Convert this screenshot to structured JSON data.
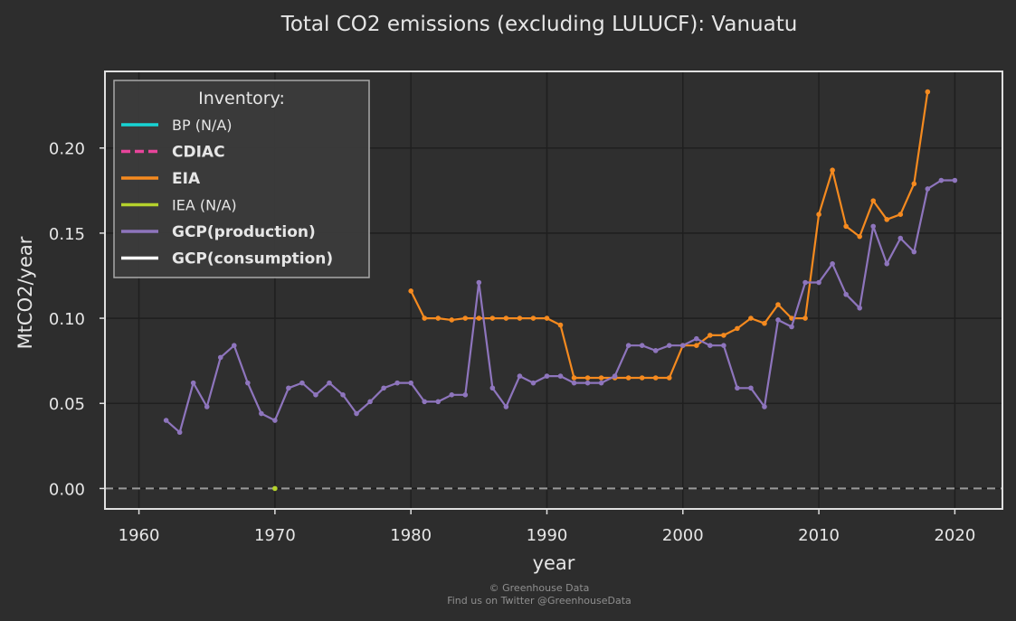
{
  "chart_data": {
    "type": "line",
    "title": "Total CO2 emissions (excluding LULUCF): Vanuatu",
    "xlabel": "year",
    "ylabel": "MtCO2/year",
    "xlim": [
      1957.5,
      2023.5
    ],
    "ylim": [
      -0.012,
      0.245
    ],
    "xticks": [
      1960,
      1970,
      1980,
      1990,
      2000,
      2010,
      2020
    ],
    "yticks": [
      0.0,
      0.05,
      0.1,
      0.15,
      0.2
    ],
    "ytick_labels": [
      "0.00",
      "0.05",
      "0.10",
      "0.15",
      "0.20"
    ],
    "grid": true,
    "zero_line": true,
    "legend": {
      "title": "Inventory:",
      "placement": "top-left",
      "entries": [
        {
          "label": "BP (N/A)",
          "color": "#17d4d4",
          "style": "solid",
          "bold": false
        },
        {
          "label": "CDIAC",
          "color": "#e8459b",
          "style": "dashed",
          "bold": true
        },
        {
          "label": "EIA",
          "color": "#f58a1f",
          "style": "solid",
          "bold": true
        },
        {
          "label": "IEA (N/A)",
          "color": "#b5d22c",
          "style": "solid",
          "bold": false
        },
        {
          "label": "GCP(production)",
          "color": "#8e75bd",
          "style": "solid",
          "bold": true
        },
        {
          "label": "GCP(consumption)",
          "color": "#ffffff",
          "style": "solid",
          "bold": true
        }
      ]
    },
    "series": [
      {
        "name": "EIA",
        "color": "#f58a1f",
        "points": [
          [
            1980,
            0.116
          ],
          [
            1981,
            0.1
          ],
          [
            1982,
            0.1
          ],
          [
            1983,
            0.099
          ],
          [
            1984,
            0.1
          ],
          [
            1985,
            0.1
          ],
          [
            1986,
            0.1
          ],
          [
            1987,
            0.1
          ],
          [
            1988,
            0.1
          ],
          [
            1989,
            0.1
          ],
          [
            1990,
            0.1
          ],
          [
            1991,
            0.096
          ],
          [
            1992,
            0.065
          ],
          [
            1993,
            0.065
          ],
          [
            1994,
            0.065
          ],
          [
            1995,
            0.065
          ],
          [
            1996,
            0.065
          ],
          [
            1997,
            0.065
          ],
          [
            1998,
            0.065
          ],
          [
            1999,
            0.065
          ],
          [
            2000,
            0.084
          ],
          [
            2001,
            0.084
          ],
          [
            2002,
            0.09
          ],
          [
            2003,
            0.09
          ],
          [
            2004,
            0.094
          ],
          [
            2005,
            0.1
          ],
          [
            2006,
            0.097
          ],
          [
            2007,
            0.108
          ],
          [
            2008,
            0.1
          ],
          [
            2009,
            0.1
          ],
          [
            2010,
            0.161
          ],
          [
            2011,
            0.187
          ],
          [
            2012,
            0.154
          ],
          [
            2013,
            0.148
          ],
          [
            2014,
            0.169
          ],
          [
            2015,
            0.158
          ],
          [
            2016,
            0.161
          ],
          [
            2017,
            0.179
          ],
          [
            2018,
            0.233
          ]
        ]
      },
      {
        "name": "GCP(production)",
        "color": "#8e75bd",
        "points": [
          [
            1962,
            0.04
          ],
          [
            1963,
            0.033
          ],
          [
            1964,
            0.062
          ],
          [
            1965,
            0.048
          ],
          [
            1966,
            0.077
          ],
          [
            1967,
            0.084
          ],
          [
            1968,
            0.062
          ],
          [
            1969,
            0.044
          ],
          [
            1970,
            0.04
          ],
          [
            1971,
            0.059
          ],
          [
            1972,
            0.062
          ],
          [
            1973,
            0.055
          ],
          [
            1974,
            0.062
          ],
          [
            1975,
            0.055
          ],
          [
            1976,
            0.044
          ],
          [
            1977,
            0.051
          ],
          [
            1978,
            0.059
          ],
          [
            1979,
            0.062
          ],
          [
            1980,
            0.062
          ],
          [
            1981,
            0.051
          ],
          [
            1982,
            0.051
          ],
          [
            1983,
            0.055
          ],
          [
            1984,
            0.055
          ],
          [
            1985,
            0.121
          ],
          [
            1986,
            0.059
          ],
          [
            1987,
            0.048
          ],
          [
            1988,
            0.066
          ],
          [
            1989,
            0.062
          ],
          [
            1990,
            0.066
          ],
          [
            1991,
            0.066
          ],
          [
            1992,
            0.062
          ],
          [
            1993,
            0.062
          ],
          [
            1994,
            0.062
          ],
          [
            1995,
            0.066
          ],
          [
            1996,
            0.084
          ],
          [
            1997,
            0.084
          ],
          [
            1998,
            0.081
          ],
          [
            1999,
            0.084
          ],
          [
            2000,
            0.084
          ],
          [
            2001,
            0.088
          ],
          [
            2002,
            0.084
          ],
          [
            2003,
            0.084
          ],
          [
            2004,
            0.059
          ],
          [
            2005,
            0.059
          ],
          [
            2006,
            0.048
          ],
          [
            2007,
            0.099
          ],
          [
            2008,
            0.095
          ],
          [
            2009,
            0.121
          ],
          [
            2010,
            0.121
          ],
          [
            2011,
            0.132
          ],
          [
            2012,
            0.114
          ],
          [
            2013,
            0.106
          ],
          [
            2014,
            0.154
          ],
          [
            2015,
            0.132
          ],
          [
            2016,
            0.147
          ],
          [
            2017,
            0.139
          ],
          [
            2018,
            0.176
          ],
          [
            2019,
            0.181
          ],
          [
            2020,
            0.181
          ]
        ]
      },
      {
        "name": "IEA (N/A)",
        "color": "#b5d22c",
        "points": [
          [
            1970,
            0.0
          ]
        ]
      }
    ]
  },
  "credits": {
    "line1": "© Greenhouse Data",
    "line2": "Find us on Twitter @GreenhouseData"
  }
}
